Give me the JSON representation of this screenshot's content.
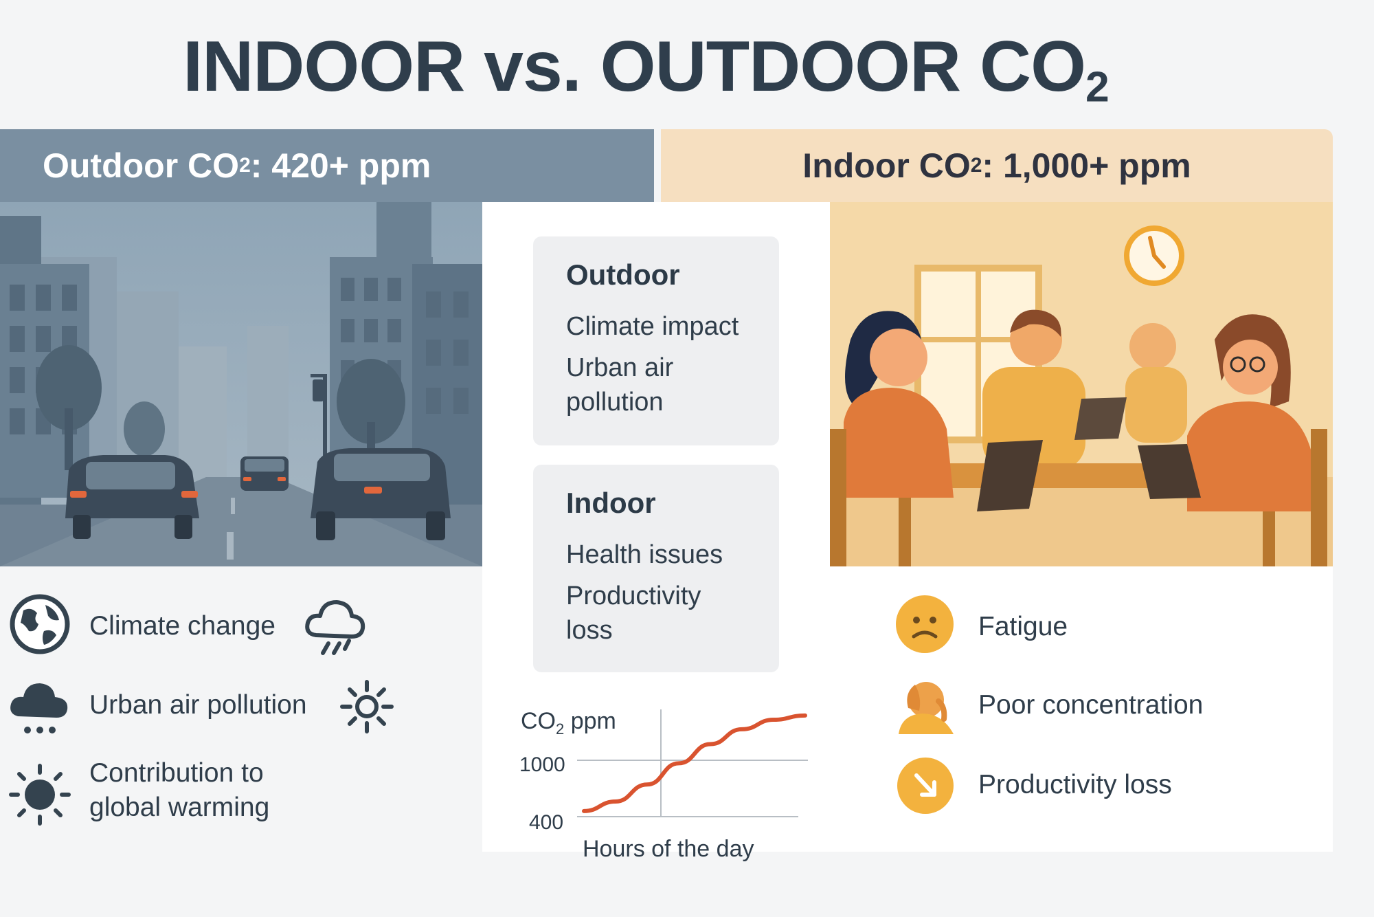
{
  "title": {
    "main": "INDOOR vs. OUTDOOR CO",
    "sub": "2"
  },
  "outdoor": {
    "header_prefix": "Outdoor CO",
    "header_sub": "2",
    "header_suffix": ": 420+ ppm",
    "items": [
      {
        "label": "Climate change",
        "icon": "globe-icon",
        "extra_icon": "storm-cloud-icon"
      },
      {
        "label": "Urban air pollution",
        "icon": "smog-cloud-icon",
        "extra_icon": "sun-outline-icon"
      },
      {
        "label": "Contribution to\nglobal warming",
        "icon": "sun-filled-icon"
      }
    ]
  },
  "indoor": {
    "header_prefix": "Indoor CO",
    "header_sub": "2",
    "header_suffix": ": 1,000+ ppm",
    "items": [
      {
        "label": "Fatigue",
        "icon": "sad-face-icon"
      },
      {
        "label": "Poor concentration",
        "icon": "head-in-hand-icon"
      },
      {
        "label": "Productivity loss",
        "icon": "arrow-down-right-icon"
      }
    ]
  },
  "cards": {
    "outdoor": {
      "title": "Outdoor",
      "lines": [
        "Climate impact",
        "Urban air\npollution"
      ]
    },
    "indoor": {
      "title": "Indoor",
      "lines": [
        "Health issues",
        "Productivity\nloss"
      ]
    }
  },
  "chart_data": {
    "type": "line",
    "ylabel_prefix": "CO",
    "ylabel_sub": "2",
    "ylabel_suffix": " ppm",
    "xlabel": "Hours of the day",
    "yticks": [
      400,
      1000
    ],
    "ylim": [
      300,
      1400
    ],
    "series": [
      {
        "values": [
          430,
          520,
          680,
          880,
          1060,
          1200,
          1290,
          1330
        ],
        "color": "#d9532f"
      }
    ],
    "grid": true
  },
  "colors": {
    "outdoor_header": "#7a8fa1",
    "indoor_header": "#f6dfc0",
    "accent_orange": "#f0a832",
    "line_red": "#d9532f"
  }
}
